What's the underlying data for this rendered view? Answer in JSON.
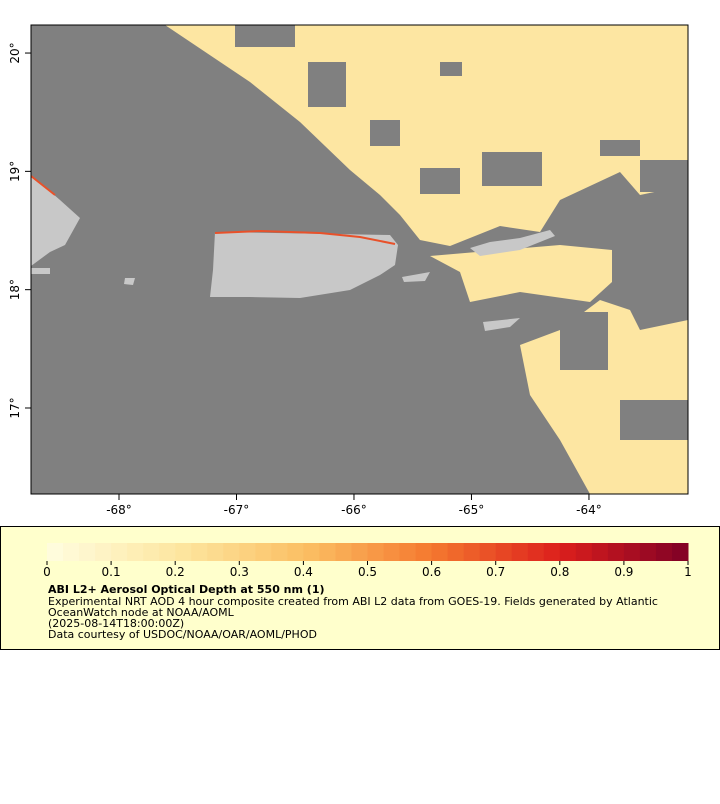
{
  "map": {
    "xlim": [
      -68.749,
      -63.157
    ],
    "ylim": [
      16.273,
      20.237
    ],
    "xticks": [
      {
        "value": -68,
        "label": "-68°"
      },
      {
        "value": -67,
        "label": "-67°"
      },
      {
        "value": -66,
        "label": "-66°"
      },
      {
        "value": -65,
        "label": "-65°"
      },
      {
        "value": -64,
        "label": "-64°"
      }
    ],
    "yticks": [
      {
        "value": 17,
        "label": "17°"
      },
      {
        "value": 18,
        "label": "18°"
      },
      {
        "value": 19,
        "label": "19°"
      },
      {
        "value": 20,
        "label": "20°"
      }
    ],
    "ocean_color": "#808080",
    "land_color": "#c8c8c8",
    "data_color": "#fde6a2"
  },
  "colorbar": {
    "range": [
      0,
      1
    ],
    "ticks": [
      0,
      0.1,
      0.2,
      0.3,
      0.4,
      0.5,
      0.6,
      0.7,
      0.8,
      0.9,
      1
    ],
    "steps": 40,
    "colors": [
      "#fffde0",
      "#fde7a2",
      "#fbc064",
      "#f5792f",
      "#dc1f1c",
      "#7f0026"
    ]
  },
  "legend": {
    "title": "ABI L2+ Aerosol Optical Depth at 550 nm (1)",
    "lines": [
      "Experimental NRT AOD 4 hour composite created from ABI L2 data from GOES-19. Fields generated by Atlantic",
      "OceanWatch node at NOAA/AOML",
      "(2025-08-14T18:00:00Z)",
      "Data courtesy of USDOC/NOAA/OAR/AOML/PHOD"
    ]
  }
}
